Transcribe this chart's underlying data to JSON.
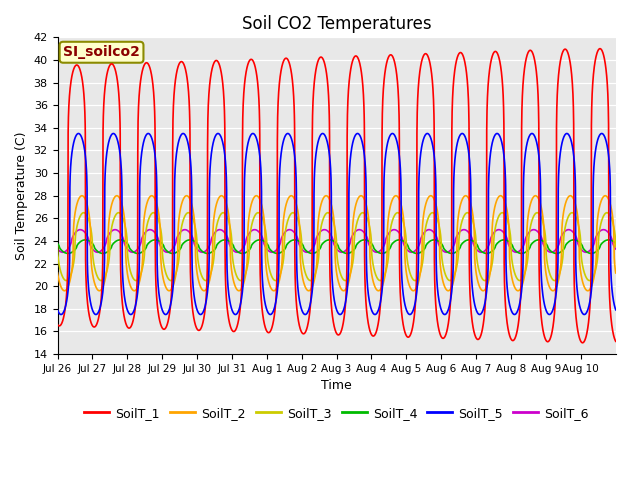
{
  "title": "Soil CO2 Temperatures",
  "xlabel": "Time",
  "ylabel": "Soil Temperature (C)",
  "ylim": [
    14,
    42
  ],
  "yticks": [
    14,
    16,
    18,
    20,
    22,
    24,
    26,
    28,
    30,
    32,
    34,
    36,
    38,
    40,
    42
  ],
  "annotation": "SI_soilco2",
  "annotation_color": "#8B0000",
  "annotation_bg": "#FFFFCC",
  "bg_color": "#E8E8E8",
  "series_colors": {
    "SoilT_1": "#FF0000",
    "SoilT_2": "#FFA500",
    "SoilT_3": "#CCCC00",
    "SoilT_4": "#00BB00",
    "SoilT_5": "#0000FF",
    "SoilT_6": "#CC00CC"
  },
  "series_lw": 1.2,
  "xtick_labels": [
    "Jul 26",
    "Jul 27",
    "Jul 28",
    "Jul 29",
    "Jul 30",
    "Jul 31",
    "Aug 1",
    "Aug 2",
    "Aug 3",
    "Aug 4",
    "Aug 5",
    "Aug 6",
    "Aug 7",
    "Aug 8",
    "Aug 9",
    "Aug 10"
  ],
  "legend_entries": [
    "SoilT_1",
    "SoilT_2",
    "SoilT_3",
    "SoilT_4",
    "SoilT_5",
    "SoilT_6"
  ],
  "legend_colors": [
    "#FF0000",
    "#FFA500",
    "#CCCC00",
    "#00BB00",
    "#0000FF",
    "#CC00CC"
  ]
}
